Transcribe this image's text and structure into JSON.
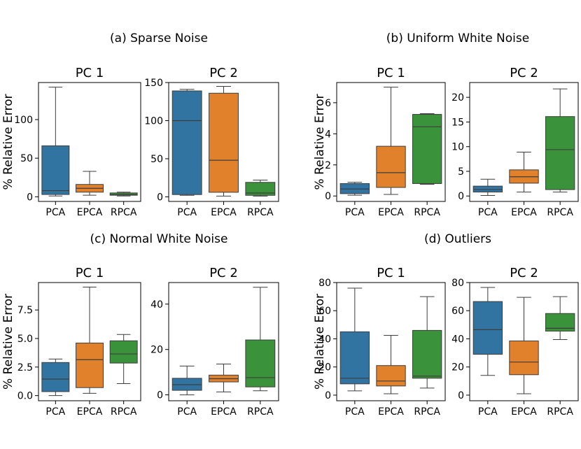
{
  "chart_data": [
    {
      "type": "box",
      "group_title": "(a) Sparse Noise",
      "ylabel": "% Relative Error",
      "panels": [
        {
          "title": "PC 1",
          "categories": [
            "PCA",
            "EPCA",
            "RPCA"
          ],
          "ylim": [
            -6,
            148
          ],
          "yticks": [
            0,
            50,
            100
          ],
          "ytick_labels": [
            "0",
            "50",
            "100"
          ],
          "boxes": [
            {
              "min": 1,
              "q1": 3,
              "median": 8,
              "q3": 66,
              "max": 142
            },
            {
              "min": 2,
              "q1": 6,
              "median": 11,
              "q3": 16,
              "max": 33
            },
            {
              "min": 1,
              "q1": 2,
              "median": 3,
              "q3": 5,
              "max": 6
            }
          ]
        },
        {
          "title": "PC 2",
          "categories": [
            "PCA",
            "EPCA",
            "RPCA"
          ],
          "ylim": [
            -6,
            150
          ],
          "yticks": [
            0,
            50,
            100,
            150
          ],
          "ytick_labels": [
            "0",
            "50",
            "100",
            "150"
          ],
          "boxes": [
            {
              "min": 2,
              "q1": 3,
              "median": 100,
              "q3": 139,
              "max": 141
            },
            {
              "min": 1,
              "q1": 6,
              "median": 48,
              "q3": 136,
              "max": 145
            },
            {
              "min": 1,
              "q1": 2,
              "median": 5,
              "q3": 19,
              "max": 22
            }
          ]
        }
      ]
    },
    {
      "type": "box",
      "group_title": "(b) Uniform White Noise",
      "ylabel": "% Relative Error",
      "panels": [
        {
          "title": "PC 1",
          "categories": [
            "PCA",
            "EPCA",
            "RPCA"
          ],
          "ylim": [
            -0.35,
            7.3
          ],
          "yticks": [
            0,
            2,
            4,
            6
          ],
          "ytick_labels": [
            "0",
            "2",
            "4",
            "6"
          ],
          "boxes": [
            {
              "min": 0.05,
              "q1": 0.15,
              "median": 0.45,
              "q3": 0.8,
              "max": 0.88
            },
            {
              "min": 0.1,
              "q1": 0.55,
              "median": 1.5,
              "q3": 3.2,
              "max": 7.0
            },
            {
              "min": 0.75,
              "q1": 0.8,
              "median": 4.45,
              "q3": 5.25,
              "max": 5.3
            }
          ]
        },
        {
          "title": "PC 2",
          "categories": [
            "PCA",
            "EPCA",
            "RPCA"
          ],
          "ylim": [
            -1.1,
            23
          ],
          "yticks": [
            0,
            5,
            10,
            15,
            20
          ],
          "ytick_labels": [
            "0",
            "5",
            "10",
            "15",
            "20"
          ],
          "boxes": [
            {
              "min": 0.1,
              "q1": 0.8,
              "median": 1.3,
              "q3": 2.0,
              "max": 3.4
            },
            {
              "min": 0.8,
              "q1": 2.6,
              "median": 3.9,
              "q3": 5.3,
              "max": 8.9
            },
            {
              "min": 0.8,
              "q1": 1.3,
              "median": 9.4,
              "q3": 16.1,
              "max": 21.7
            }
          ]
        }
      ]
    },
    {
      "type": "box",
      "group_title": "(c) Normal White Noise",
      "ylabel": "% Relative Error",
      "panels": [
        {
          "title": "PC 1",
          "categories": [
            "PCA",
            "EPCA",
            "RPCA"
          ],
          "ylim": [
            -0.45,
            9.9
          ],
          "yticks": [
            0,
            2.5,
            5.0,
            7.5
          ],
          "ytick_labels": [
            "0.0",
            "2.5",
            "5.0",
            "7.5"
          ],
          "boxes": [
            {
              "min": 0.0,
              "q1": 0.35,
              "median": 1.45,
              "q3": 2.9,
              "max": 3.2
            },
            {
              "min": 0.2,
              "q1": 0.7,
              "median": 3.15,
              "q3": 4.6,
              "max": 9.5
            },
            {
              "min": 1.05,
              "q1": 2.85,
              "median": 3.65,
              "q3": 4.8,
              "max": 5.35
            }
          ]
        },
        {
          "title": "PC 2",
          "categories": [
            "PCA",
            "EPCA",
            "RPCA"
          ],
          "ylim": [
            -2.6,
            49.5
          ],
          "yticks": [
            0,
            20,
            40
          ],
          "ytick_labels": [
            "0",
            "20",
            "40"
          ],
          "boxes": [
            {
              "min": 0.0,
              "q1": 2.0,
              "median": 4.5,
              "q3": 7.3,
              "max": 12.7
            },
            {
              "min": 1.3,
              "q1": 5.7,
              "median": 7.1,
              "q3": 8.7,
              "max": 13.6
            },
            {
              "min": 1.8,
              "q1": 3.5,
              "median": 7.6,
              "q3": 24.2,
              "max": 47.4
            }
          ]
        }
      ]
    },
    {
      "type": "box",
      "group_title": "(d) Outliers",
      "ylabel": "% Relative Error",
      "panels": [
        {
          "title": "PC 1",
          "categories": [
            "PCA",
            "EPCA",
            "RPCA"
          ],
          "ylim": [
            -4,
            80
          ],
          "yticks": [
            0,
            20,
            40,
            60,
            80
          ],
          "ytick_labels": [
            "0",
            "20",
            "40",
            "60",
            "80"
          ],
          "boxes": [
            {
              "min": 3,
              "q1": 8,
              "median": 12,
              "q3": 45,
              "max": 76
            },
            {
              "min": 1,
              "q1": 6.5,
              "median": 10,
              "q3": 21,
              "max": 42.5
            },
            {
              "min": 5,
              "q1": 12,
              "median": 13.5,
              "q3": 46,
              "max": 70
            }
          ]
        },
        {
          "title": "PC 2",
          "categories": [
            "PCA",
            "EPCA",
            "RPCA"
          ],
          "ylim": [
            -4,
            80
          ],
          "yticks": [
            0,
            20,
            40,
            60,
            80
          ],
          "ytick_labels": [
            "0",
            "20",
            "40",
            "60",
            "80"
          ],
          "boxes": [
            {
              "min": 14,
              "q1": 29,
              "median": 46.5,
              "q3": 66.5,
              "max": 76.5
            },
            {
              "min": 1,
              "q1": 14.5,
              "median": 23.5,
              "q3": 38.5,
              "max": 69.5
            },
            {
              "min": 39.5,
              "q1": 45.5,
              "median": 47.5,
              "q3": 58,
              "max": 70
            }
          ]
        }
      ]
    }
  ],
  "colors": {
    "PCA": "#3274a1",
    "EPCA": "#e1812c",
    "RPCA": "#3a923a"
  }
}
